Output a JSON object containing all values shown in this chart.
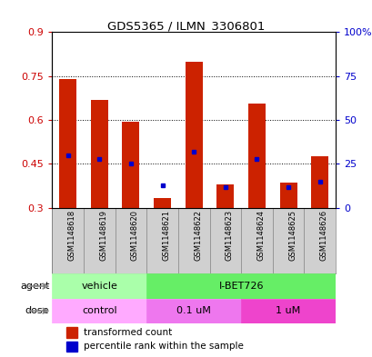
{
  "title": "GDS5365 / ILMN_3306801",
  "samples": [
    "GSM1148618",
    "GSM1148619",
    "GSM1148620",
    "GSM1148621",
    "GSM1148622",
    "GSM1148623",
    "GSM1148624",
    "GSM1148625",
    "GSM1148626"
  ],
  "red_values": [
    0.74,
    0.67,
    0.595,
    0.335,
    0.8,
    0.38,
    0.655,
    0.385,
    0.475
  ],
  "blue_values_pct": [
    30,
    28,
    25,
    13,
    32,
    12,
    28,
    12,
    15
  ],
  "red_base": 0.3,
  "ylim_left": [
    0.3,
    0.9
  ],
  "ylim_right": [
    0,
    100
  ],
  "yticks_left": [
    0.3,
    0.45,
    0.6,
    0.75,
    0.9
  ],
  "yticks_right": [
    0,
    25,
    50,
    75,
    100
  ],
  "yticklabels_right": [
    "0",
    "25",
    "50",
    "75",
    "100%"
  ],
  "left_axis_color": "#cc0000",
  "right_axis_color": "#0000cc",
  "bar_color_red": "#cc2200",
  "bar_color_blue": "#0000cc",
  "agent_vehicle_color": "#aaffaa",
  "agent_ibet_color": "#66ee66",
  "dose_control_color": "#ffaaff",
  "dose_01_color": "#ee77ee",
  "dose_1_color": "#ee44cc",
  "vehicle_label": "vehicle",
  "ibet_label": "I-BET726",
  "control_label": "control",
  "dose01_label": "0.1 uM",
  "dose1_label": "1 uM",
  "legend_red": "transformed count",
  "legend_blue": "percentile rank within the sample",
  "bar_width": 0.55,
  "tick_area_color": "#d0d0d0",
  "plot_bg_color": "#ffffff"
}
